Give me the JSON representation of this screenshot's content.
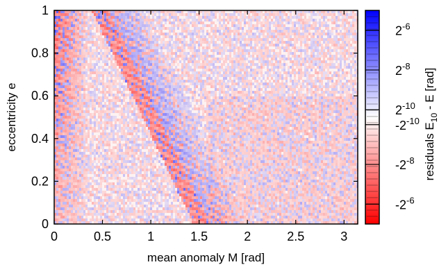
{
  "chart_data": {
    "type": "heatmap",
    "xlabel": "mean anomaly M  [rad]",
    "ylabel": "eccentricity e",
    "colorbar_label": "residuals E",
    "colorbar_label_sub": "10",
    "colorbar_label_tail": " - E  [rad]",
    "xlim": [
      0,
      3.14159
    ],
    "ylim": [
      0,
      1
    ],
    "xticks": [
      0,
      0.5,
      1,
      1.5,
      2,
      2.5,
      3
    ],
    "xtick_labels": [
      "0",
      "0.5",
      "1",
      "1.5",
      "2",
      "2.5",
      "3"
    ],
    "yticks": [
      0,
      0.2,
      0.4,
      0.6,
      0.8,
      1
    ],
    "ytick_labels": [
      "0",
      "0.2",
      "0.4",
      "0.6",
      "0.8",
      "1"
    ],
    "colorbar_ticks": [
      {
        "base": "2",
        "exp": "-6",
        "value": 0.015625
      },
      {
        "base": "2",
        "exp": "-8",
        "value": 0.00390625
      },
      {
        "base": "2",
        "exp": "-10",
        "value": 0.0009765625
      },
      {
        "base": "-2",
        "exp": "-10",
        "value": -0.0009765625
      },
      {
        "base": "-2",
        "exp": "-8",
        "value": -0.00390625
      },
      {
        "base": "-2",
        "exp": "-6",
        "value": -0.015625
      }
    ],
    "colorscale": {
      "positive": "#0000ff",
      "zero": "#ffffff",
      "negative": "#ff0000"
    },
    "grid": false,
    "legend": "none"
  }
}
